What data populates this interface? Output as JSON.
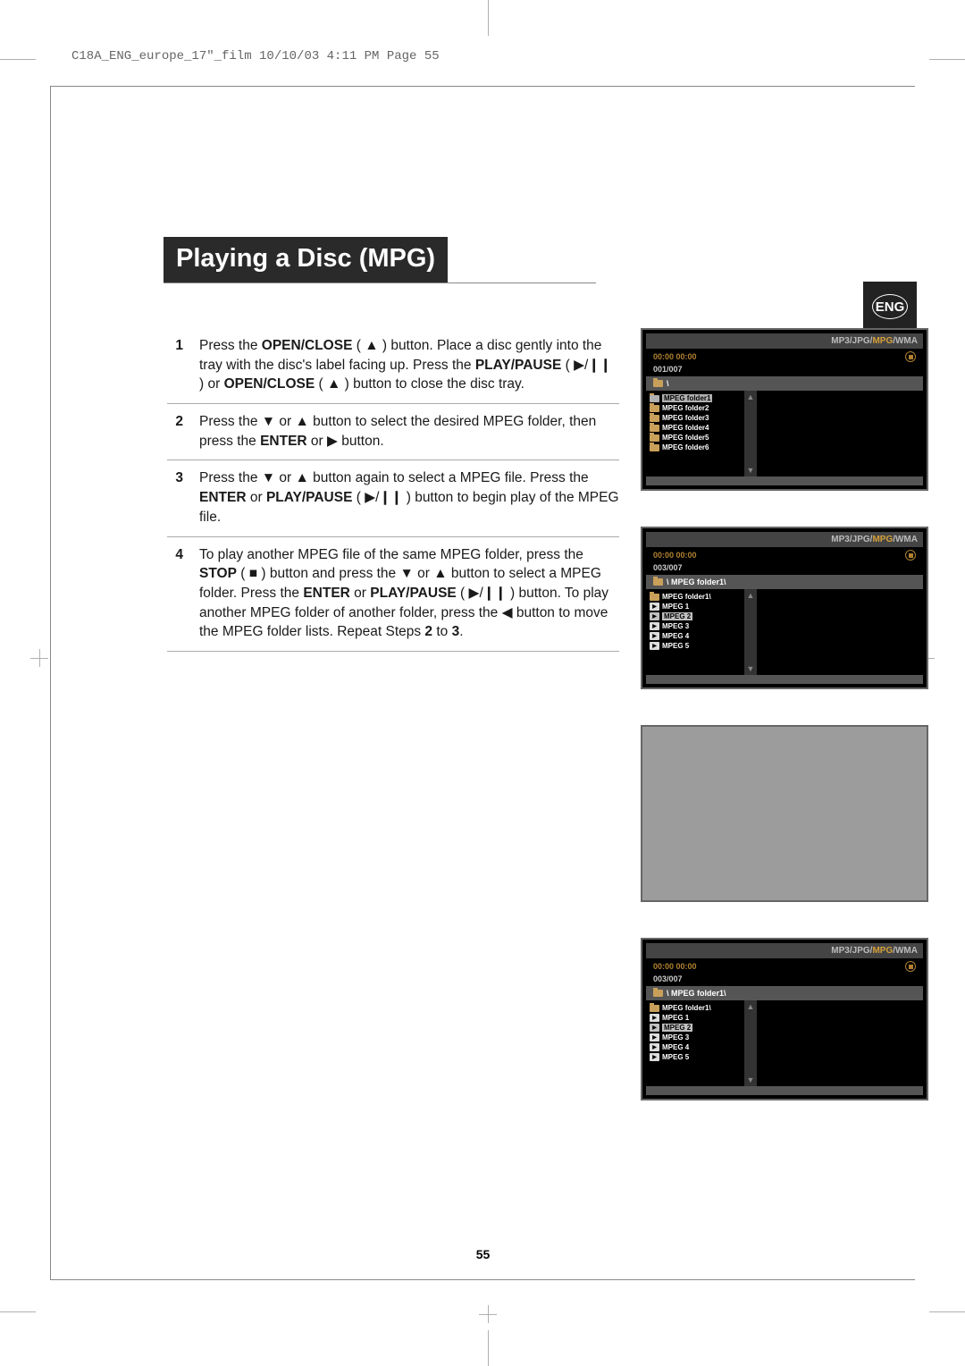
{
  "header_line": "C18A_ENG_europe_17\"_film  10/10/03  4:11 PM  Page 55",
  "lang_badge": "ENG",
  "title": "Playing a Disc (MPG)",
  "page_number": "55",
  "steps": [
    {
      "num": "1",
      "html": "Press the <b>OPEN/CLOSE</b> ( <span class='sym'>▲</span> ) button. Place a disc gently into the tray with the disc's label facing up. Press the <b>PLAY/PAUSE</b> ( <span class='sym'>▶/❙❙</span> ) or <b>OPEN/CLOSE</b> ( <span class='sym'>▲</span> ) button to close the disc tray."
    },
    {
      "num": "2",
      "html": "Press the <span class='sym'>▼</span> or <span class='sym'>▲</span> button to select the desired MPEG folder, then press the <b>ENTER</b> or <span class='sym'>▶</span> button."
    },
    {
      "num": "3",
      "html": "Press the <span class='sym'>▼</span> or <span class='sym'>▲</span> button again to select a MPEG file. Press the <b>ENTER</b> or <b>PLAY/PAUSE</b> ( <span class='sym'>▶/❙❙</span> ) button to begin play of the MPEG file."
    },
    {
      "num": "4",
      "html": "To play another MPEG file of the same MPEG folder, press the <b>STOP</b> ( <span class='sym'>■</span> ) button and press the <span class='sym'>▼</span> or <span class='sym'>▲</span> button to select a MPEG folder. Press the <b>ENTER</b> or <b>PLAY/PAUSE</b> ( <span class='sym'>▶/❙❙</span> ) button. To play another MPEG folder of another folder, press the <span class='sym'>◀</span> button to move the MPEG folder lists. Repeat Steps <b>2</b> to <b>3</b>."
    }
  ],
  "screen_header_pre": "MP3/JPG/",
  "screen_header_hl": "MPG",
  "screen_header_post": "/WMA",
  "screens": {
    "s1": {
      "time": "00:00  00:00",
      "counter": "001/007",
      "path": "\\",
      "items": [
        {
          "type": "folder",
          "label": "MPEG folder1",
          "sel": true
        },
        {
          "type": "folder",
          "label": "MPEG folder2"
        },
        {
          "type": "folder",
          "label": "MPEG folder3"
        },
        {
          "type": "folder",
          "label": "MPEG folder4"
        },
        {
          "type": "folder",
          "label": "MPEG folder5"
        },
        {
          "type": "folder",
          "label": "MPEG folder6"
        }
      ]
    },
    "s2": {
      "time": "00:00  00:00",
      "counter": "003/007",
      "path": "\\ MPEG folder1\\",
      "items": [
        {
          "type": "folder",
          "label": "MPEG folder1\\"
        },
        {
          "type": "file",
          "label": "MPEG 1"
        },
        {
          "type": "file",
          "label": "MPEG 2",
          "sel": true
        },
        {
          "type": "file",
          "label": "MPEG 3"
        },
        {
          "type": "file",
          "label": "MPEG 4"
        },
        {
          "type": "file",
          "label": "MPEG 5"
        }
      ]
    },
    "s4": {
      "time": "00:00  00:00",
      "counter": "003/007",
      "path": "\\ MPEG folder1\\",
      "items": [
        {
          "type": "folder",
          "label": "MPEG folder1\\"
        },
        {
          "type": "file",
          "label": "MPEG 1"
        },
        {
          "type": "file",
          "label": "MPEG 2",
          "sel": true
        },
        {
          "type": "file",
          "label": "MPEG 3"
        },
        {
          "type": "file",
          "label": "MPEG 4"
        },
        {
          "type": "file",
          "label": "MPEG 5"
        }
      ]
    }
  },
  "colors": {
    "page_bg": "#ffffff",
    "title_bg": "#2a2a2a",
    "title_fg": "#ffffff",
    "text": "#1a1a1a",
    "rule": "#aaaaaa",
    "badge_bg": "#222222",
    "screen_bg": "#000000",
    "screen_border": "#666666",
    "header_bar": "#444444",
    "highlight": "#d4a03a",
    "time_color": "#b08030",
    "folder_icon": "#c9a05a",
    "blank_screen": "#9c9c9c"
  }
}
